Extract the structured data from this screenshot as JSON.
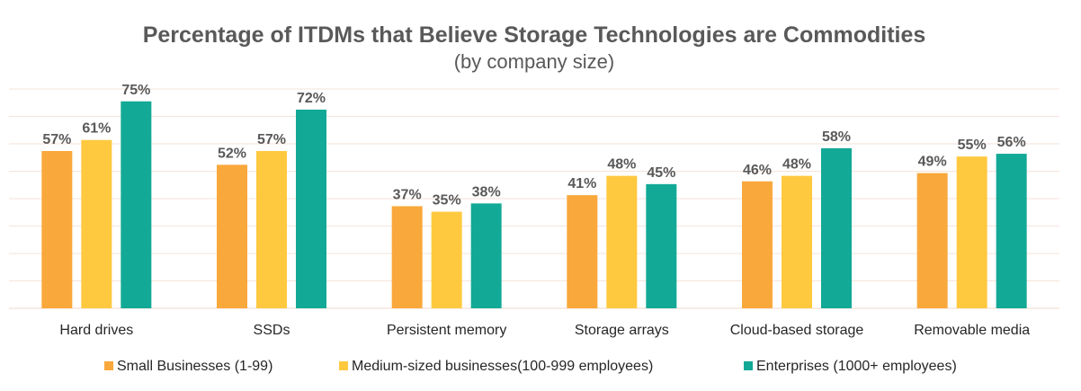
{
  "chart_data": {
    "type": "bar",
    "title": "Percentage of ITDMs that Believe Storage Technologies are Commodities",
    "subtitle": "(by company size)",
    "xlabel": "",
    "ylabel": "",
    "ylim": [
      0,
      80
    ],
    "grid": true,
    "legend_position": "bottom",
    "categories": [
      "Hard drives",
      "SSDs",
      "Persistent memory",
      "Storage arrays",
      "Cloud-based storage",
      "Removable media"
    ],
    "series": [
      {
        "name": "Small Businesses (1-99)",
        "color": "#F9A83B",
        "values": [
          57,
          52,
          37,
          41,
          46,
          49
        ],
        "labels": [
          "57%",
          "52%",
          "37%",
          "41%",
          "46%",
          "49%"
        ]
      },
      {
        "name": "Medium-sized businesses(100-999 employees)",
        "color": "#FFC93F",
        "values": [
          61,
          57,
          35,
          48,
          48,
          55
        ],
        "labels": [
          "61%",
          "57%",
          "35%",
          "48%",
          "48%",
          "55%"
        ]
      },
      {
        "name": "Enterprises (1000+ employees)",
        "color": "#12A996",
        "values": [
          75,
          72,
          38,
          45,
          58,
          56
        ],
        "labels": [
          "75%",
          "72%",
          "38%",
          "45%",
          "58%",
          "56%"
        ]
      }
    ]
  }
}
